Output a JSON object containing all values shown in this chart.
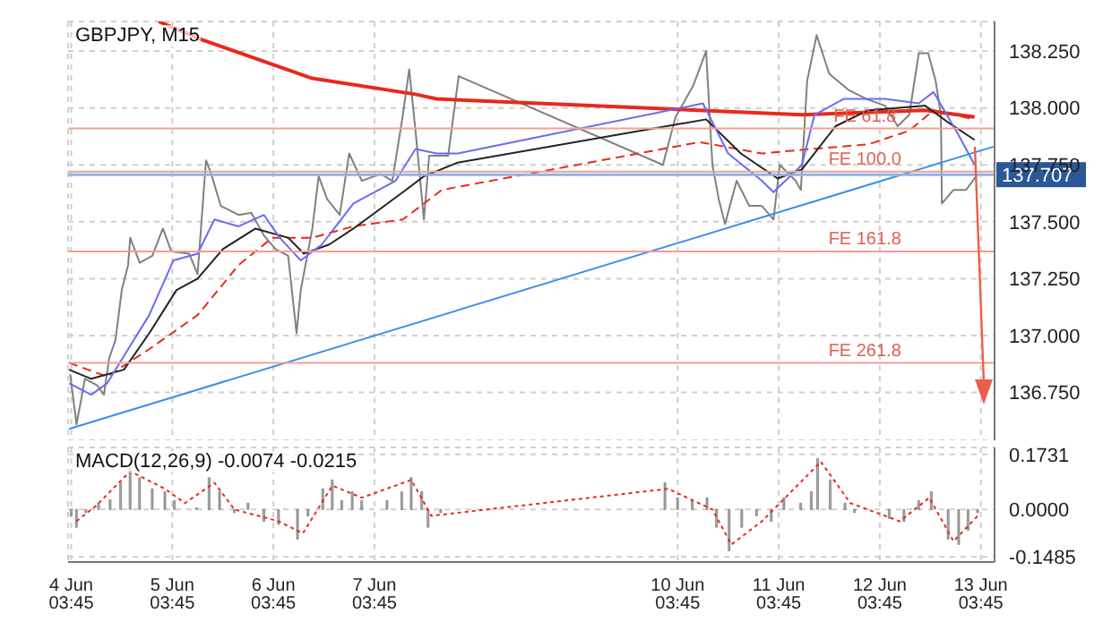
{
  "chart_data": [
    {
      "type": "line",
      "title": "GBPJPY, M15",
      "tick_labels": "y",
      "grid": true,
      "xlim": [
        "--06-04T03:00",
        "--06-13T07:00"
      ],
      "ylim": [
        136.54,
        138.38
      ],
      "xticks": [
        {
          "value": "--06-04T03:45",
          "label": null
        },
        {
          "value": "--06-05T03:45",
          "label": null
        },
        {
          "value": "--06-06T03:45",
          "label": null
        },
        {
          "value": "--06-07T03:45",
          "label": null
        },
        {
          "value": "--06-10T03:45",
          "label": null
        },
        {
          "value": "--06-11T03:45",
          "label": null
        },
        {
          "value": "--06-12T03:45",
          "label": null
        },
        {
          "value": "--06-13T03:45",
          "label": null
        }
      ],
      "yticks": [
        {
          "value": 136.75,
          "label": "136.750"
        },
        {
          "value": 137,
          "label": "137.000"
        },
        {
          "value": 137.25,
          "label": "137.250"
        },
        {
          "value": 137.5,
          "label": "137.500"
        },
        {
          "value": 137.75,
          "label": "137.750"
        },
        {
          "value": 138,
          "label": "138.000"
        },
        {
          "value": 138.25,
          "label": "138.250"
        }
      ],
      "series": [
        {
          "type": "line",
          "color": "#808080",
          "x": [
            "--06-04T03:30",
            "--06-04T05:00",
            "--06-04T07:00",
            "--06-04T10:00",
            "--06-04T11:30",
            "--06-04T12:45",
            "--06-04T14:15",
            "--06-04T15:45",
            "--06-04T17:15",
            "--06-04T17:45",
            "--06-04T20:00",
            "--06-04T23:00",
            "--06-05T01:30",
            "--06-05T03:30",
            "--06-05T07:45",
            "--06-05T09:45",
            "--06-05T11:45",
            "--06-05T13:00",
            "--06-05T15:15",
            "--06-05T19:30",
            "--06-05T22:30",
            "--06-06T01:30",
            "--06-06T04:15",
            "--06-06T07:15",
            "--06-06T09:15",
            "--06-06T10:15",
            "--06-06T13:00",
            "--06-06T14:30",
            "--06-06T16:30",
            "--06-06T19:30",
            "--06-06T21:45",
            "--06-07T00:45",
            "--06-07T05:15",
            "--06-07T08:00",
            "--06-07T10:30",
            "--06-07T12:00",
            "--06-07T13:30",
            "--06-07T15:30",
            "--06-07T16:45",
            "--06-07T21:15",
            "--06-07T23:45",
            "--06-10T00:15",
            "--06-10T03:15",
            "--06-10T07:30",
            "--06-10T10:30",
            "--06-10T12:00",
            "--06-10T13:30",
            "--06-10T15:00",
            "--06-10T17:45",
            "--06-10T20:45",
            "--06-10T23:45",
            "--06-11T02:30",
            "--06-11T04:00",
            "--06-11T07:45",
            "--06-11T09:00",
            "--06-11T10:30",
            "--06-11T12:45",
            "--06-11T15:45",
            "--06-11T20:15",
            "--06-12T00:30",
            "--06-12T05:00",
            "--06-12T08:00",
            "--06-12T10:45",
            "--06-12T13:00",
            "--06-12T15:15",
            "--06-12T17:00",
            "--06-12T18:15",
            "--06-12T18:30",
            "--06-12T21:15",
            "--06-13T00:15",
            "--06-13T03:00"
          ],
          "values": [
            136.83,
            136.61,
            136.81,
            136.78,
            136.74,
            136.9,
            136.98,
            137.2,
            137.31,
            137.43,
            137.32,
            137.35,
            137.47,
            137.37,
            137.36,
            137.27,
            137.77,
            137.71,
            137.57,
            137.53,
            137.54,
            137.44,
            137.38,
            137.35,
            137.01,
            137.2,
            137.47,
            137.7,
            137.6,
            137.53,
            137.8,
            137.68,
            137.71,
            137.68,
            137.97,
            138.17,
            137.9,
            137.51,
            137.79,
            137.79,
            138.14,
            137.75,
            137.96,
            138.1,
            138.25,
            137.75,
            137.6,
            137.49,
            137.68,
            137.57,
            137.57,
            137.51,
            137.75,
            137.68,
            137.64,
            138.12,
            138.32,
            138.15,
            138.08,
            138.04,
            138.01,
            137.92,
            137.97,
            138.24,
            138.24,
            138.12,
            137.97,
            137.58,
            137.64,
            137.64,
            137.71
          ]
        },
        {
          "type": "line",
          "color": "#e8291c",
          "x": [
            "--06-05T00:30",
            "--06-05T10:45",
            "--06-06T13:00",
            "--06-07T13:30",
            "--06-07T18:30",
            "--06-11T09:15",
            "--06-12T14:30",
            "--06-13T02:15"
          ],
          "values": [
            138.38,
            138.3,
            138.13,
            138.06,
            138.04,
            137.97,
            137.99,
            137.96
          ]
        },
        {
          "type": "line",
          "color": "#e8291c",
          "line_style": "dashed",
          "x": [
            "--06-04T03:15",
            "--06-04T12:15",
            "--06-04T22:15",
            "--06-05T09:45",
            "--06-05T19:30",
            "--06-06T03:30",
            "--06-06T13:00",
            "--06-06T22:45",
            "--06-07T10:30",
            "--06-07T19:45",
            "--06-10T09:00",
            "--06-10T23:45",
            "--06-11T11:30",
            "--06-12T01:00",
            "--06-12T10:45",
            "--06-12T16:30",
            "--06-13T02:15"
          ],
          "values": [
            136.88,
            136.82,
            136.94,
            137.09,
            137.31,
            137.43,
            137.43,
            137.48,
            137.51,
            137.64,
            137.85,
            137.8,
            137.82,
            137.84,
            137.9,
            137.99,
            137.95
          ]
        },
        {
          "type": "line",
          "color": "#222222",
          "x": [
            "--06-04T03:15",
            "--06-04T08:30",
            "--06-04T16:15",
            "--06-04T22:15",
            "--06-05T04:45",
            "--06-05T09:45",
            "--06-05T15:45",
            "--06-05T23:30",
            "--06-06T07:15",
            "--06-06T11:00",
            "--06-06T17:00",
            "--06-06T22:45",
            "--06-07T10:30",
            "--06-07T15:30",
            "--06-07T23:30",
            "--06-10T10:30",
            "--06-10T18:45",
            "--06-11T03:30",
            "--06-11T09:15",
            "--06-11T17:15",
            "--06-12T01:00",
            "--06-12T14:30",
            "--06-12T20:30",
            "--06-13T02:15"
          ],
          "values": [
            136.85,
            136.81,
            136.85,
            137.01,
            137.2,
            137.25,
            137.38,
            137.47,
            137.43,
            137.36,
            137.4,
            137.47,
            137.63,
            137.7,
            137.76,
            137.95,
            137.8,
            137.69,
            137.73,
            137.92,
            137.99,
            138.01,
            137.93,
            137.86
          ]
        },
        {
          "type": "line",
          "color": "#6b6bf0",
          "x": [
            "--06-04T03:15",
            "--06-04T08:30",
            "--06-04T12:15",
            "--06-04T17:15",
            "--06-04T22:15",
            "--06-05T04:00",
            "--06-05T09:45",
            "--06-05T13:45",
            "--06-05T19:30",
            "--06-06T01:30",
            "--06-06T05:15",
            "--06-06T10:15",
            "--06-06T15:15",
            "--06-06T22:45",
            "--06-07T08:45",
            "--06-07T13:30",
            "--06-07T18:30",
            "--06-07T23:30",
            "--06-10T09:45",
            "--06-10T15:45",
            "--06-10T23:45",
            "--06-11T02:30",
            "--06-11T09:15",
            "--06-11T12:15",
            "--06-11T19:15",
            "--06-12T05:00",
            "--06-12T13:00",
            "--06-12T16:30",
            "--06-12T22:30",
            "--06-13T02:15"
          ],
          "values": [
            136.79,
            136.74,
            136.79,
            136.94,
            137.09,
            137.33,
            137.36,
            137.51,
            137.48,
            137.53,
            137.43,
            137.33,
            137.4,
            137.58,
            137.68,
            137.82,
            137.8,
            137.8,
            138.02,
            137.8,
            137.68,
            137.63,
            137.75,
            137.97,
            138.04,
            138.04,
            138.02,
            138.07,
            137.88,
            137.75
          ]
        },
        {
          "type": "line",
          "color": "#3d8ee8",
          "x": [
            "--06-04T03:15",
            "--06-13T06:45"
          ],
          "values": [
            136.59,
            137.83
          ]
        }
      ],
      "ref_lines": [
        {
          "axis": "y",
          "value": 137.707,
          "label": "137.707",
          "color": "#8fb4e6"
        },
        {
          "axis": "y",
          "value": 137.91,
          "label": "FE 61.8",
          "color": "#f3a093"
        },
        {
          "axis": "y",
          "value": 137.72,
          "label": "FE 100.0",
          "color": "#f3a093"
        },
        {
          "axis": "y",
          "value": 137.37,
          "label": "FE 161.8",
          "color": "#f3a093"
        },
        {
          "axis": "y",
          "value": 136.88,
          "label": "FE 261.8",
          "color": "#f3a093"
        }
      ]
    },
    {
      "type": "bar",
      "title": "MACD(12,26,9) -0.0074 -0.0215",
      "grid": true,
      "xlim": [
        "--06-04T03:00",
        "--06-13T07:00"
      ],
      "ylim": [
        -0.165,
        0.195
      ],
      "xticks": [
        {
          "value": "--06-04T03:45",
          "label": "4 Jun 03:45"
        },
        {
          "value": "--06-05T03:45",
          "label": "5 Jun 03:45"
        },
        {
          "value": "--06-06T03:45",
          "label": "6 Jun 03:45"
        },
        {
          "value": "--06-07T03:45",
          "label": "7 Jun 03:45"
        },
        {
          "value": "--06-10T03:45",
          "label": "10 Jun 03:45"
        },
        {
          "value": "--06-11T03:45",
          "label": "11 Jun 03:45"
        },
        {
          "value": "--06-12T03:45",
          "label": "12 Jun 03:45"
        },
        {
          "value": "--06-13T03:45",
          "label": "13 Jun 03:45"
        }
      ],
      "yticks": [
        {
          "value": -0.1485,
          "label": "-0.1485"
        },
        {
          "value": 0,
          "label": "0.0000"
        },
        {
          "value": 0.1731,
          "label": "0.1731"
        }
      ],
      "series": [
        {
          "type": "bar",
          "color": "#a9a9a9",
          "x": [
            "--06-04T03:45",
            "--06-04T05:00",
            "--06-04T07:15",
            "--06-04T10:15",
            "--06-04T13:00",
            "--06-04T15:30",
            "--06-04T17:45",
            "--06-04T20:00",
            "--06-04T23:00",
            "--06-05T02:00",
            "--06-05T04:15",
            "--06-05T06:45",
            "--06-05T09:30",
            "--06-05T12:30",
            "--06-05T15:00",
            "--06-05T18:30",
            "--06-05T21:45",
            "--06-06T01:30",
            "--06-06T05:00",
            "--06-06T09:30",
            "--06-06T12:00",
            "--06-06T15:30",
            "--06-06T17:45",
            "--06-06T20:00",
            "--06-06T22:30",
            "--06-07T00:45",
            "--06-07T06:45",
            "--06-07T10:15",
            "--06-07T12:30",
            "--06-07T15:00",
            "--06-07T16:30",
            "--06-07T19:30",
            "--06-07T23:00",
            "--06-10T00:45",
            "--06-10T03:45",
            "--06-10T07:15",
            "--06-10T10:45",
            "--06-10T13:00",
            "--06-10T16:00",
            "--06-10T19:00",
            "--06-10T22:30",
            "--06-11T02:00",
            "--06-11T05:00",
            "--06-11T09:00",
            "--06-11T11:30",
            "--06-11T13:00",
            "--06-11T16:00",
            "--06-11T19:30",
            "--06-11T21:45",
            "--06-12T02:30",
            "--06-12T06:00",
            "--06-12T09:30",
            "--06-12T13:00",
            "--06-12T16:00",
            "--06-12T17:45",
            "--06-12T20:00",
            "--06-12T22:30",
            "--06-13T00:45",
            "--06-13T03:00"
          ],
          "values": [
            -0.02,
            -0.056,
            -0.01,
            0.02,
            0.03,
            0.084,
            0.13,
            0.1,
            0.065,
            0.056,
            0.028,
            0,
            0.005,
            0.1,
            0.056,
            -0.01,
            0.02,
            -0.037,
            -0.047,
            -0.093,
            -0.02,
            0.065,
            0.093,
            0.028,
            0.056,
            0.028,
            0.028,
            0.056,
            0.1,
            0.056,
            -0.056,
            -0.01,
            0,
            0.084,
            0.037,
            0.028,
            0.037,
            -0.056,
            -0.13,
            -0.056,
            -0.02,
            -0.037,
            0.037,
            0.02,
            0.056,
            0.16,
            0.093,
            0.02,
            -0.01,
            0,
            -0.028,
            -0.037,
            0.028,
            0.056,
            0,
            -0.093,
            -0.11,
            -0.065,
            -0.01
          ]
        },
        {
          "type": "line",
          "color": "#e8291c",
          "line_style": "dotted",
          "x": [
            "--06-04T05:00",
            "--06-04T09:30",
            "--06-04T17:45",
            "--06-05T02:00",
            "--06-05T06:45",
            "--06-05T13:45",
            "--06-05T18:30",
            "--06-06T05:00",
            "--06-06T10:45",
            "--06-06T17:45",
            "--06-07T00:45",
            "--06-07T12:30",
            "--06-07T17:15",
            "--06-10T01:30",
            "--06-10T12:00",
            "--06-10T16:30",
            "--06-10T23:45",
            "--06-11T13:45",
            "--06-11T20:45",
            "--06-12T08:30",
            "--06-12T15:30",
            "--06-12T21:15",
            "--06-13T03:00"
          ],
          "values": [
            -0.037,
            0.01,
            0.12,
            0.065,
            0.02,
            0.084,
            0,
            -0.037,
            -0.075,
            0.075,
            0.037,
            0.093,
            -0.02,
            0.065,
            0,
            -0.11,
            -0.037,
            0.15,
            0.02,
            -0.037,
            0.037,
            -0.1,
            -0.02
          ]
        }
      ]
    }
  ]
}
